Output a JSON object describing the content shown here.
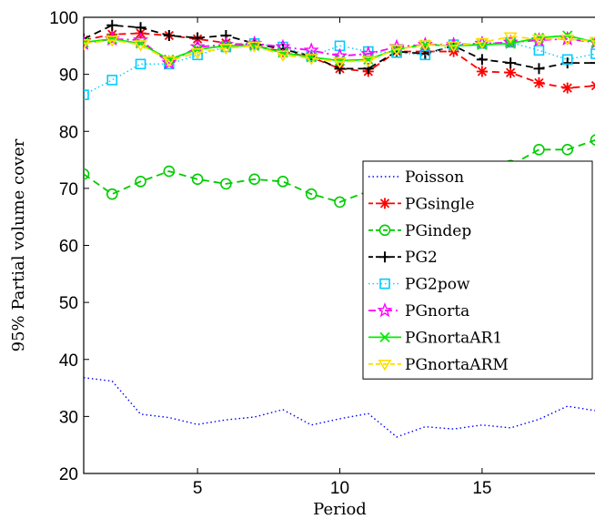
{
  "chart_data": {
    "type": "line",
    "xlabel": "Period",
    "ylabel": "95% Partial volume cover",
    "xlim": [
      1,
      19
    ],
    "ylim": [
      20,
      100
    ],
    "xticks": [
      "5",
      "10",
      "15"
    ],
    "yticks": [
      "20",
      "30",
      "40",
      "50",
      "60",
      "70",
      "80",
      "90",
      "100"
    ],
    "grid": false,
    "legend_position": "center-right",
    "x": [
      1,
      2,
      3,
      4,
      5,
      6,
      7,
      8,
      9,
      10,
      11,
      12,
      13,
      14,
      15,
      16,
      17,
      18,
      19
    ],
    "series": [
      {
        "name": "Poisson",
        "color": "#0000ff",
        "dash": "dotted",
        "marker": "none",
        "values": [
          36.8,
          36.2,
          30.4,
          29.8,
          28.6,
          29.4,
          29.9,
          31.2,
          28.5,
          29.6,
          30.5,
          26.4,
          28.2,
          27.8,
          28.5,
          28.0,
          29.5,
          31.8,
          31.0
        ]
      },
      {
        "name": "PGsingle",
        "color": "#ff0000",
        "dash": "dashed",
        "marker": "asterisk",
        "values": [
          96.0,
          97.0,
          97.2,
          96.8,
          96.2,
          95.5,
          95.0,
          94.0,
          93.0,
          91.0,
          90.5,
          94.0,
          94.0,
          94.0,
          90.5,
          90.3,
          88.5,
          87.6,
          88.0
        ]
      },
      {
        "name": "PGindep",
        "color": "#00cc00",
        "dash": "dashed",
        "marker": "circle",
        "values": [
          72.5,
          69.0,
          71.2,
          73.0,
          71.6,
          70.8,
          71.6,
          71.2,
          69.0,
          67.6,
          69.5,
          70.5,
          71.0,
          71.5,
          72.8,
          74.0,
          76.8,
          76.8,
          78.5
        ]
      },
      {
        "name": "PG2",
        "color": "#000000",
        "dash": "dashed",
        "marker": "plus",
        "values": [
          96.2,
          98.6,
          98.2,
          96.8,
          96.4,
          96.8,
          95.4,
          94.4,
          93.2,
          91.0,
          91.0,
          94.0,
          93.6,
          95.0,
          92.6,
          92.0,
          91.0,
          92.0,
          92.0
        ]
      },
      {
        "name": "PG2pow",
        "color": "#00ccff",
        "dash": "dotted",
        "marker": "square",
        "values": [
          86.4,
          89.0,
          91.8,
          91.8,
          93.4,
          94.8,
          95.4,
          94.8,
          93.2,
          95.0,
          94.0,
          93.8,
          93.4,
          95.2,
          95.4,
          95.6,
          94.2,
          92.6,
          93.6
        ]
      },
      {
        "name": "PGnorta",
        "color": "#ff00ff",
        "dash": "dashdot",
        "marker": "star",
        "values": [
          95.4,
          96.2,
          96.0,
          92.0,
          94.8,
          95.2,
          95.4,
          94.8,
          94.2,
          93.2,
          93.6,
          94.8,
          95.2,
          95.2,
          95.4,
          95.6,
          96.0,
          96.2,
          95.6
        ]
      },
      {
        "name": "PGnortaAR1",
        "color": "#00ee00",
        "dash": "solid",
        "marker": "x",
        "values": [
          95.6,
          96.2,
          95.4,
          92.6,
          94.4,
          95.0,
          95.0,
          93.8,
          93.0,
          92.4,
          92.6,
          94.4,
          95.2,
          95.0,
          95.2,
          95.4,
          96.4,
          96.8,
          95.6
        ]
      },
      {
        "name": "PGnortaARM",
        "color": "#ffdd00",
        "dash": "dashed",
        "marker": "triangle-down",
        "values": [
          95.4,
          96.0,
          95.2,
          92.4,
          93.8,
          94.6,
          95.0,
          93.4,
          92.8,
          92.2,
          92.4,
          94.4,
          95.2,
          95.0,
          95.6,
          96.6,
          96.2,
          96.2,
          95.8
        ]
      }
    ]
  }
}
